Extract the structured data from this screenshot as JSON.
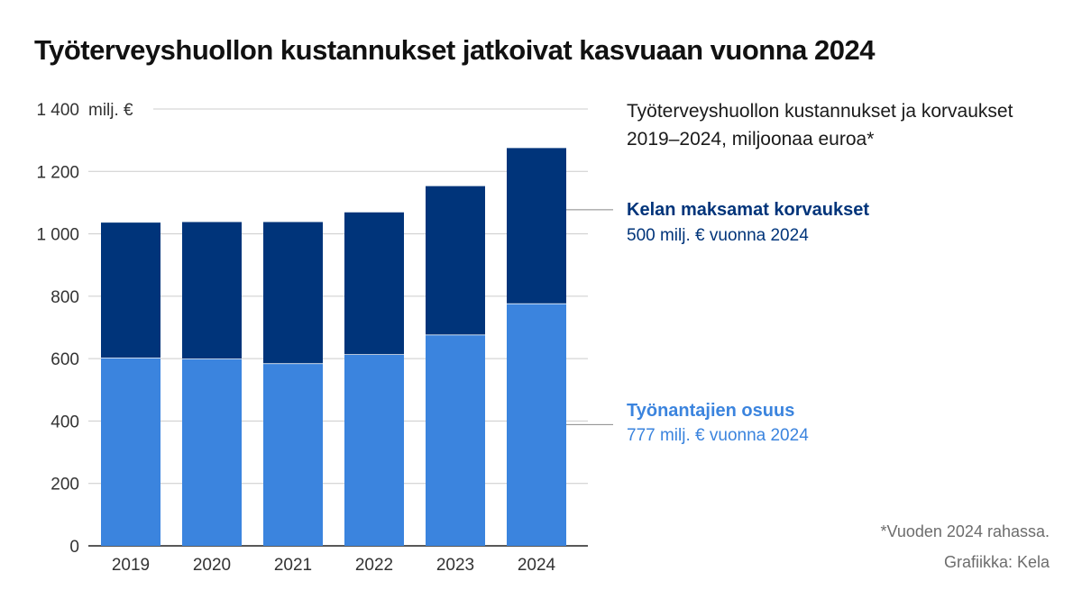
{
  "title": "Työterveyshuollon kustannukset jatkoivat kasvuaan vuonna 2024",
  "subtitle": "Työterveyshuollon kustannukset ja korvaukset 2019–2024, miljoonaa euroa*",
  "legend": {
    "kela": {
      "name": "Kelan maksamat korvaukset",
      "value": "500 milj. € vuonna 2024"
    },
    "employer": {
      "name": "Työnantajien osuus",
      "value": "777 milj. € vuonna 2024"
    }
  },
  "footnote": "*Vuoden 2024 rahassa.",
  "credit": "Grafiikka: Kela",
  "colors": {
    "kela": "#00347a",
    "employer": "#3b84de",
    "grid": "#cccccc",
    "axis": "#222222"
  },
  "chart_data": {
    "type": "bar",
    "stacked": true,
    "categories": [
      "2019",
      "2020",
      "2021",
      "2022",
      "2023",
      "2024"
    ],
    "series": [
      {
        "name": "Työnantajien osuus",
        "values": [
          603,
          600,
          585,
          614,
          677,
          777
        ]
      },
      {
        "name": "Kelan maksamat korvaukset",
        "values": [
          435,
          440,
          455,
          457,
          478,
          500
        ]
      }
    ],
    "ylim": [
      0,
      1400
    ],
    "yticks": [
      0,
      200,
      400,
      600,
      800,
      1000,
      1200,
      1400
    ],
    "ytick_labels": [
      "0",
      "200",
      "400",
      "600",
      "800",
      "1 000",
      "1 200",
      "1 400"
    ],
    "yunit": "milj. €",
    "grid": true
  }
}
